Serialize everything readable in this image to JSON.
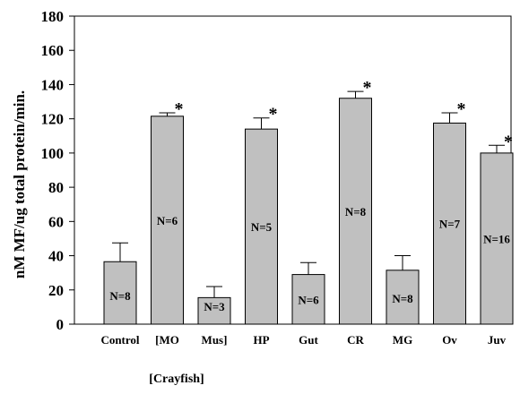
{
  "chart_data": {
    "type": "bar",
    "title": "",
    "xlabel": "",
    "ylabel": "nM MF/ug total protein/min.",
    "ylim": [
      0,
      180
    ],
    "yticks": [
      0,
      20,
      40,
      60,
      80,
      100,
      120,
      140,
      160,
      180
    ],
    "grid": false,
    "colors": {
      "bar_fill": "#c0c0c0",
      "bar_stroke": "#000000"
    },
    "group_label": "[Crayfish]",
    "categories": [
      "Control",
      "[MO",
      "Mus]",
      "HP",
      "Gut",
      "CR",
      "MG",
      "Ov",
      "Juv"
    ],
    "values": [
      36.5,
      121.5,
      15.5,
      114,
      29,
      132,
      31.5,
      117.5,
      100
    ],
    "errors": [
      11,
      2,
      6.5,
      6.5,
      7,
      4,
      8.5,
      6,
      4.5
    ],
    "n_labels": [
      "N=8",
      "N=6",
      "N=3",
      "N=5",
      "N=6",
      "N=8",
      "N=8",
      "N=7",
      "N=16"
    ],
    "significant": [
      false,
      true,
      false,
      true,
      false,
      true,
      false,
      true,
      true
    ],
    "significance_marker": "*"
  }
}
